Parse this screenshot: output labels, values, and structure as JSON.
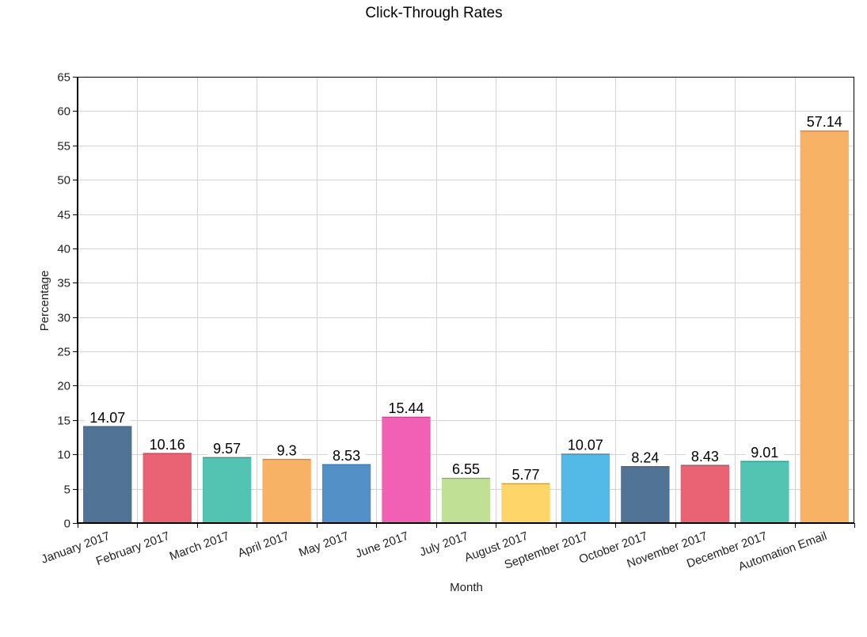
{
  "chart_data": {
    "type": "bar",
    "title": "Click-Through Rates",
    "xlabel": "Month",
    "ylabel": "Percentage",
    "ylim": [
      0,
      65
    ],
    "ytick_step": 5,
    "grid": true,
    "legend": "none",
    "categories": [
      "January 2017",
      "February 2017",
      "March 2017",
      "April 2017",
      "May 2017",
      "June 2017",
      "July 2017",
      "August 2017",
      "September 2017",
      "October 2017",
      "November 2017",
      "December 2017",
      "Automation Email"
    ],
    "values": [
      14.07,
      10.16,
      9.57,
      9.3,
      8.53,
      15.44,
      6.55,
      5.77,
      10.07,
      8.24,
      8.43,
      9.01,
      57.14
    ],
    "value_labels": [
      "14.07",
      "10.16",
      "9.57",
      "9.3",
      "8.53",
      "15.44",
      "6.55",
      "5.77",
      "10.07",
      "8.24",
      "8.43",
      "9.01",
      "57.14"
    ],
    "colors": [
      "#4e7094",
      "#ea6071",
      "#50c2b0",
      "#f8b062",
      "#4f8ec6",
      "#f25db4",
      "#bfdf93",
      "#fed466",
      "#50b8e6",
      "#4e7094",
      "#ea6071",
      "#50c2b0",
      "#f8b062"
    ]
  }
}
